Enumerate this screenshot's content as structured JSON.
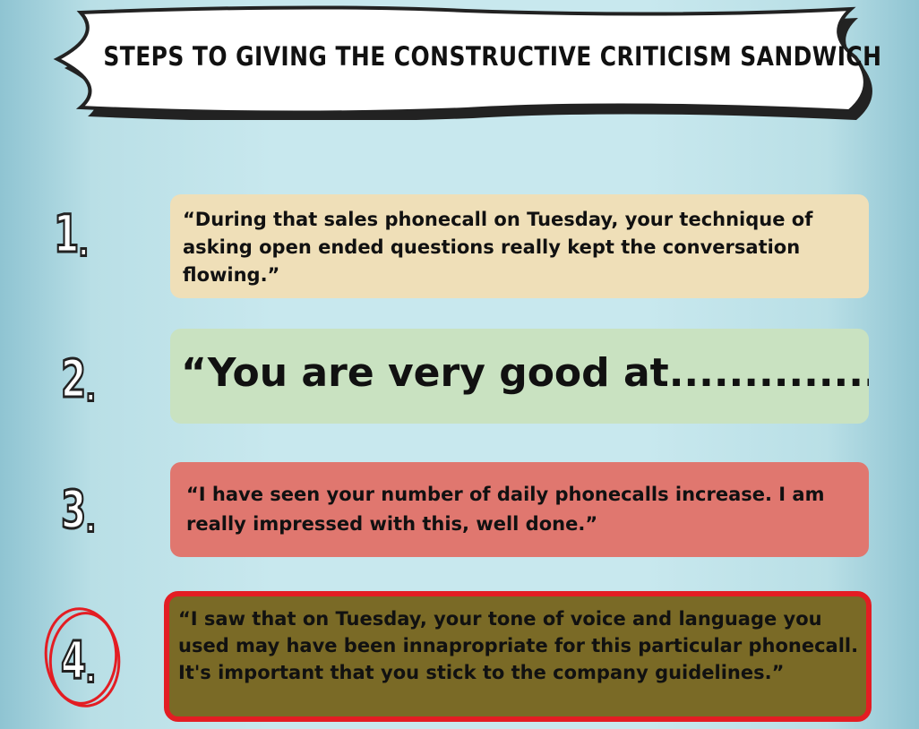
{
  "banner": {
    "title": "STEPS TO GIVING THE CONSTRUCTIVE CRITICISM SANDWICH"
  },
  "steps": [
    {
      "number": "1",
      "quote": "“During that sales phonecall on Tuesday, your technique of asking open ended questions really kept the conversation flowing.”",
      "box_color": "#efdfb8",
      "number_outline": "#222222"
    },
    {
      "number": "2",
      "quote": "“You are very good at..............”",
      "box_color": "#c9e2c1",
      "number_outline": "#222222"
    },
    {
      "number": "3",
      "quote": "“I have seen your number of daily phonecalls increase. I am really impressed with this, well done.”",
      "box_color": "#e0776f",
      "number_outline": "#222222"
    },
    {
      "number": "4",
      "quote": "“I saw that on Tuesday, your tone of voice and language you used may have been innapropriate for this particular phonecall. It's important that you stick to the company guidelines.”",
      "box_color": "#7a6a26",
      "border_color": "#e31d23",
      "ring_color": "#e31d23"
    }
  ]
}
